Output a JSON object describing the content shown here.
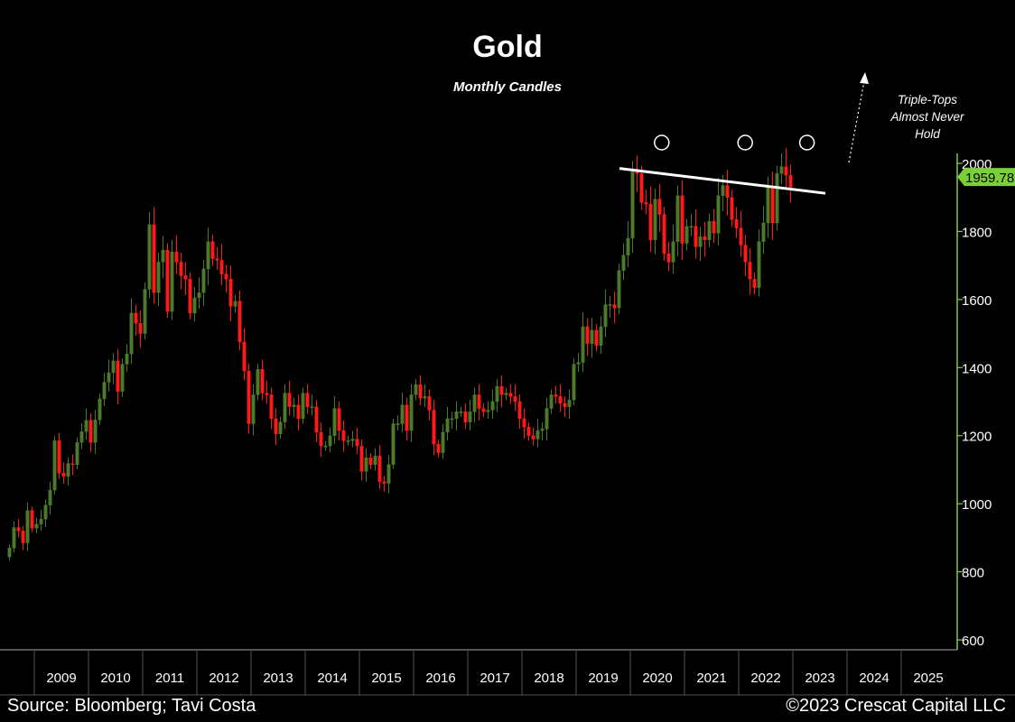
{
  "chart_data": {
    "type": "candlestick",
    "title": "Gold",
    "subtitle": "Monthly Candles",
    "annotation": "Triple-Tops Almost  Never Hold",
    "last_price": "1959.78",
    "ylim": [
      600,
      2050
    ],
    "yticks": [
      "2000",
      "1800",
      "1600",
      "1400",
      "1200",
      "1000",
      "800",
      "600"
    ],
    "xticks": [
      "2009",
      "2010",
      "2011",
      "2012",
      "2013",
      "2014",
      "2015",
      "2016",
      "2017",
      "2018",
      "2019",
      "2020",
      "2021",
      "2022",
      "2023",
      "2024",
      "2025"
    ],
    "colors": {
      "up": "#4a7a2a",
      "down": "#ff1a1a",
      "axis": "#7ccf3a",
      "label_bg": "#7ccf3a"
    },
    "tops": [
      "2020",
      "2022",
      "2023"
    ],
    "resistance_line": [
      [
        2019.8,
        1985
      ],
      [
        2023.6,
        1912
      ]
    ],
    "monthly_close": [
      870,
      930,
      920,
      885,
      980,
      928,
      940,
      955,
      996,
      1040,
      1185,
      1090,
      1080,
      1118,
      1115,
      1180,
      1212,
      1245,
      1180,
      1246,
      1308,
      1357,
      1385,
      1420,
      1330,
      1410,
      1440,
      1560,
      1530,
      1500,
      1630,
      1820,
      1620,
      1710,
      1745,
      1565,
      1740,
      1710,
      1670,
      1660,
      1560,
      1605,
      1620,
      1690,
      1770,
      1720,
      1715,
      1675,
      1660,
      1580,
      1595,
      1475,
      1390,
      1235,
      1320,
      1395,
      1325,
      1320,
      1250,
      1205,
      1240,
      1325,
      1285,
      1290,
      1250,
      1325,
      1285,
      1285,
      1210,
      1170,
      1170,
      1200,
      1280,
      1215,
      1185,
      1185,
      1190,
      1170,
      1095,
      1135,
      1115,
      1140,
      1065,
      1060,
      1115,
      1235,
      1235,
      1290,
      1215,
      1320,
      1350,
      1310,
      1315,
      1275,
      1175,
      1150,
      1210,
      1250,
      1250,
      1270,
      1270,
      1240,
      1270,
      1320,
      1280,
      1270,
      1275,
      1300,
      1345,
      1320,
      1325,
      1315,
      1300,
      1250,
      1225,
      1200,
      1190,
      1215,
      1220,
      1280,
      1320,
      1315,
      1295,
      1285,
      1305,
      1410,
      1415,
      1520,
      1470,
      1510,
      1465,
      1520,
      1585,
      1585,
      1575,
      1685,
      1730,
      1780,
      1975,
      1970,
      1885,
      1880,
      1775,
      1895,
      1850,
      1735,
      1710,
      1770,
      1905,
      1765,
      1815,
      1815,
      1755,
      1785,
      1775,
      1830,
      1795,
      1905,
      1935,
      1900,
      1835,
      1810,
      1760,
      1710,
      1660,
      1635,
      1770,
      1825,
      1930,
      1825,
      1970,
      1990,
      1965,
      1930
    ]
  },
  "footer": {
    "source": "Source: Bloomberg; Tavi Costa",
    "copyright": "©2023 Crescat Capital LLC"
  }
}
